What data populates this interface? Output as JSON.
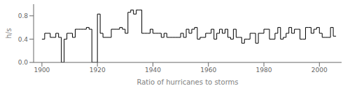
{
  "chart_data": {
    "type": "step",
    "xlabel": "Ratio of hurricanes to storms",
    "ylabel": "h/s",
    "color": "#000000",
    "grid": false,
    "xlim": [
      1897,
      2008
    ],
    "ylim": [
      0.0,
      1.0
    ],
    "xticks": [
      1900,
      1920,
      1940,
      1960,
      1980,
      2000
    ],
    "yticks": [
      {
        "value": 0.0,
        "label": "0.0"
      },
      0.4,
      0.8
    ],
    "bins": [
      1900,
      1901,
      1902,
      1903,
      1904,
      1905,
      1906,
      1907,
      1908,
      1909,
      1910,
      1911,
      1912,
      1913,
      1914,
      1915,
      1916,
      1917,
      1918,
      1919,
      1920,
      1921,
      1922,
      1923,
      1924,
      1925,
      1926,
      1927,
      1928,
      1929,
      1930,
      1931,
      1932,
      1933,
      1934,
      1935,
      1936,
      1937,
      1938,
      1939,
      1940,
      1941,
      1942,
      1943,
      1944,
      1945,
      1946,
      1947,
      1948,
      1949,
      1950,
      1951,
      1952,
      1953,
      1954,
      1955,
      1956,
      1957,
      1958,
      1959,
      1960,
      1961,
      1962,
      1963,
      1964,
      1965,
      1966,
      1967,
      1968,
      1969,
      1970,
      1971,
      1972,
      1973,
      1974,
      1975,
      1976,
      1977,
      1978,
      1979,
      1980,
      1981,
      1982,
      1983,
      1984,
      1985,
      1986,
      1987,
      1988,
      1989,
      1990,
      1991,
      1992,
      1993,
      1994,
      1995,
      1996,
      1997,
      1998,
      1999,
      2000,
      2001,
      2002,
      2003,
      2004,
      2005,
      2006
    ],
    "values": [
      0.4,
      0.5,
      0.5,
      0.43,
      0.43,
      0.5,
      0.43,
      0.0,
      0.4,
      0.5,
      0.5,
      0.43,
      0.57,
      0.57,
      0.57,
      0.57,
      0.6,
      0.57,
      0.0,
      0.0,
      0.83,
      0.5,
      0.43,
      0.43,
      0.43,
      0.57,
      0.57,
      0.57,
      0.6,
      0.57,
      0.5,
      0.86,
      0.9,
      0.83,
      0.9,
      0.9,
      0.5,
      0.5,
      0.5,
      0.57,
      0.5,
      0.5,
      0.5,
      0.43,
      0.5,
      0.43,
      0.43,
      0.43,
      0.43,
      0.43,
      0.5,
      0.43,
      0.57,
      0.5,
      0.57,
      0.6,
      0.4,
      0.43,
      0.43,
      0.5,
      0.5,
      0.57,
      0.4,
      0.5,
      0.57,
      0.5,
      0.57,
      0.43,
      0.4,
      0.57,
      0.43,
      0.43,
      0.33,
      0.4,
      0.4,
      0.5,
      0.5,
      0.33,
      0.5,
      0.5,
      0.57,
      0.57,
      0.4,
      0.4,
      0.5,
      0.6,
      0.4,
      0.43,
      0.5,
      0.6,
      0.5,
      0.57,
      0.57,
      0.4,
      0.4,
      0.6,
      0.6,
      0.5,
      0.57,
      0.6,
      0.5,
      0.43,
      0.43,
      0.43,
      0.6,
      0.45
    ]
  }
}
